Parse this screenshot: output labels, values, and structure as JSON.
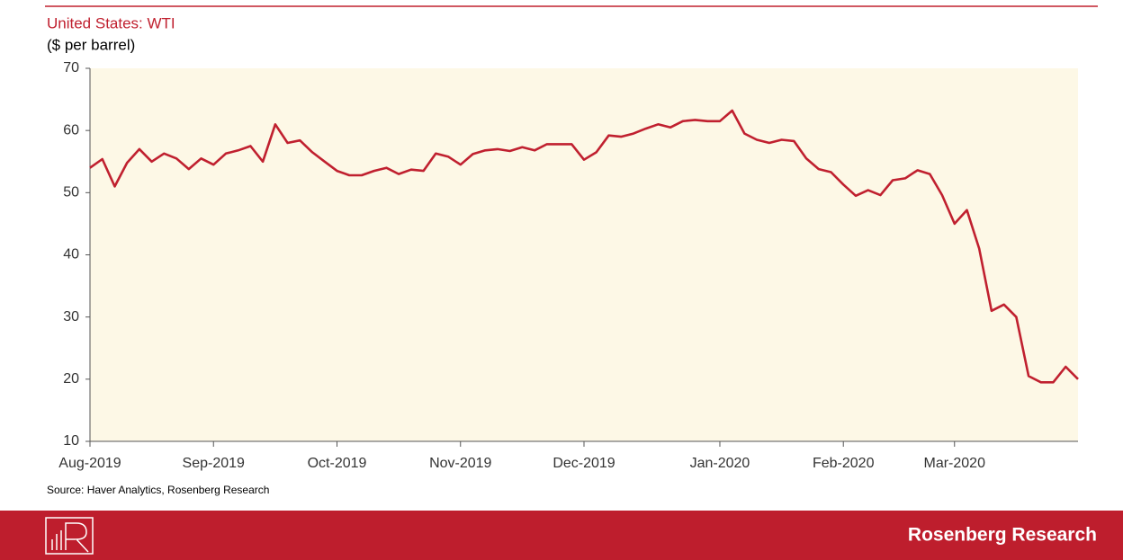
{
  "chart_data": {
    "type": "line",
    "title": "United States: WTI",
    "subtitle": "($ per barrel)",
    "source": "Source: Haver Analytics, Rosenberg Research",
    "footer": "Rosenberg Research",
    "color": "#c0202f",
    "categories": [
      "Aug-2019",
      null,
      null,
      null,
      null,
      null,
      null,
      null,
      null,
      null,
      "Sep-2019",
      null,
      null,
      null,
      null,
      null,
      null,
      null,
      null,
      null,
      "Oct-2019",
      null,
      null,
      null,
      null,
      null,
      null,
      null,
      null,
      null,
      "Nov-2019",
      null,
      null,
      null,
      null,
      null,
      null,
      null,
      null,
      null,
      "Dec-2019",
      null,
      null,
      null,
      null,
      null,
      null,
      null,
      null,
      null,
      null,
      "Jan-2020",
      null,
      null,
      null,
      null,
      null,
      null,
      null,
      null,
      null,
      "Feb-2020",
      null,
      null,
      null,
      null,
      null,
      null,
      null,
      null,
      "Mar-2020",
      null,
      null,
      null,
      null,
      null,
      null,
      null,
      null,
      null,
      null
    ],
    "values": [
      54,
      55.4,
      51,
      54.8,
      57,
      55,
      56.3,
      55.5,
      53.8,
      55.5,
      54.5,
      56.3,
      56.8,
      57.5,
      55,
      61,
      58,
      58.4,
      56.5,
      55,
      53.5,
      52.8,
      52.8,
      53.5,
      54,
      53,
      53.7,
      53.5,
      56.3,
      55.8,
      54.5,
      56.2,
      56.8,
      57,
      56.7,
      57.3,
      56.8,
      57.8,
      57.8,
      57.8,
      55.3,
      56.5,
      59.2,
      59,
      59.5,
      60.3,
      61,
      60.5,
      61.5,
      61.7,
      61.5,
      61.5,
      63.2,
      59.5,
      58.5,
      58,
      58.5,
      58.3,
      55.5,
      53.8,
      53.3,
      51.3,
      49.5,
      50.4,
      49.6,
      52,
      52.3,
      53.6,
      53,
      49.6,
      45,
      47.2,
      41,
      31,
      32,
      30,
      20.5,
      19.5,
      19.5,
      22,
      20
    ],
    "ylim": [
      10,
      70
    ],
    "yticks": [
      10,
      20,
      30,
      40,
      50,
      60,
      70
    ]
  }
}
